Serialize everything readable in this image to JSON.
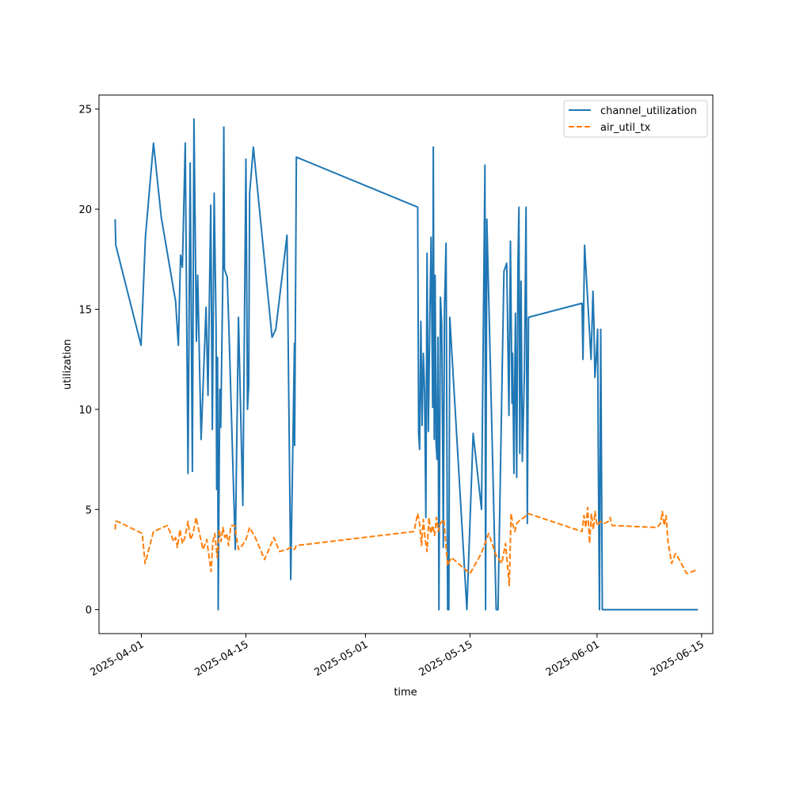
{
  "colors": {
    "channel_utilization": "#1f77b4",
    "air_util_tx": "#ff7f0e"
  },
  "chart_data": {
    "type": "line",
    "title": "",
    "xlabel": "time",
    "ylabel": "utilization",
    "xlim": [
      "2025-03-26T08:00",
      "2025-06-16T12:00"
    ],
    "ylim": [
      -1.2,
      25.7
    ],
    "x_ticks": [
      "2025-04-01",
      "2025-04-15",
      "2025-05-01",
      "2025-05-15",
      "2025-06-01",
      "2025-06-15"
    ],
    "y_ticks": [
      0,
      5,
      10,
      15,
      20,
      25
    ],
    "grid": false,
    "legend": "top-right",
    "series": [
      {
        "name": "channel_utilization",
        "style": "solid",
        "x": [
          "2025-03-28T12:00",
          "2025-03-28T14:00",
          "2025-03-31T23:00",
          "2025-04-01T13:00",
          "2025-04-02T15:00",
          "2025-04-03T16:00",
          "2025-04-05T14:00",
          "2025-04-05T23:00",
          "2025-04-06T06:00",
          "2025-04-06T12:00",
          "2025-04-06T21:00",
          "2025-04-07T06:00",
          "2025-04-07T13:00",
          "2025-04-07T20:00",
          "2025-04-08T01:00",
          "2025-04-08T09:00",
          "2025-04-08T13:00",
          "2025-04-09T00:00",
          "2025-04-09T16:00",
          "2025-04-09T22:00",
          "2025-04-10T07:00",
          "2025-04-10T12:00",
          "2025-04-10T18:00",
          "2025-04-11T00:00",
          "2025-04-11T02:00",
          "2025-04-11T05:00",
          "2025-04-11T07:00",
          "2025-04-11T12:00",
          "2025-04-11T15:00",
          "2025-04-11T22:00",
          "2025-04-12T01:00",
          "2025-04-12T03:00",
          "2025-04-12T12:00",
          "2025-04-12T18:00",
          "2025-04-13T14:00",
          "2025-04-14T00:00",
          "2025-04-14T14:00",
          "2025-04-15T00:00",
          "2025-04-15T05:00",
          "2025-04-15T09:00",
          "2025-04-15T12:00",
          "2025-04-16T00:00",
          "2025-04-18T12:00",
          "2025-04-19T00:00",
          "2025-04-20T12:00",
          "2025-04-21T00:00",
          "2025-04-21T12:00",
          "2025-04-21T12:30",
          "2025-04-21T18:00",
          "2025-05-08T00:00",
          "2025-05-08T03:00",
          "2025-05-08T06:00",
          "2025-05-08T10:00",
          "2025-05-08T14:00",
          "2025-05-08T18:00",
          "2025-05-08T22:00",
          "2025-05-09T02:00",
          "2025-05-09T06:00",
          "2025-05-09T10:00",
          "2025-05-09T15:00",
          "2025-05-09T19:00",
          "2025-05-10T00:00",
          "2025-05-10T02:00",
          "2025-05-10T05:00",
          "2025-05-10T08:00",
          "2025-05-10T11:00",
          "2025-05-10T14:00",
          "2025-05-10T17:00",
          "2025-05-10T20:00",
          "2025-05-11T01:00",
          "2025-05-11T05:00",
          "2025-05-11T08:00",
          "2025-05-11T10:00",
          "2025-05-11T14:00",
          "2025-05-11T19:00",
          "2025-05-12T00:00",
          "2025-05-12T04:00",
          "2025-05-12T07:00",
          "2025-05-14T14:00",
          "2025-05-15T10:00",
          "2025-05-16T13:00",
          "2025-05-17T00:00",
          "2025-05-17T02:00",
          "2025-05-17T06:00",
          "2025-05-18T12:00",
          "2025-05-18T18:00",
          "2025-05-19T13:00",
          "2025-05-19T22:00",
          "2025-05-20T05:00",
          "2025-05-20T10:00",
          "2025-05-20T15:00",
          "2025-05-20T17:00",
          "2025-05-20T21:00",
          "2025-05-21T02:00",
          "2025-05-21T06:00",
          "2025-05-21T10:00",
          "2025-05-21T13:00",
          "2025-05-21T16:00",
          "2025-05-21T20:00",
          "2025-05-22T00:00",
          "2025-05-22T07:00",
          "2025-05-22T12:00",
          "2025-05-22T16:00",
          "2025-05-22T20:00",
          "2025-05-30T00:00",
          "2025-05-30T03:00",
          "2025-05-30T08:00",
          "2025-05-31T05:00",
          "2025-05-31T11:00",
          "2025-05-31T14:00",
          "2025-05-31T17:00",
          "2025-05-31T21:00",
          "2025-06-01T02:00",
          "2025-06-01T04:00",
          "2025-06-01T08:00",
          "2025-06-01T12:00",
          "2025-06-01T17:00",
          "2025-06-01T23:00",
          "2025-06-02T04:00",
          "2025-06-02T09:00",
          "2025-06-02T15:00",
          "2025-06-08T18:00",
          "2025-06-09T10:00",
          "2025-06-09T12:00",
          "2025-06-09T15:00",
          "2025-06-09T18:00",
          "2025-06-09T21:00",
          "2025-06-10T00:00",
          "2025-06-10T05:00",
          "2025-06-11T00:00",
          "2025-06-11T05:00",
          "2025-06-11T11:00",
          "2025-06-11T16:00",
          "2025-06-13T00:00",
          "2025-06-13T08:00",
          "2025-06-14T12:00"
        ],
        "values": [
          19.5,
          18.2,
          13.2,
          18.6,
          23.3,
          19.6,
          15.4,
          13.2,
          17.7,
          17.1,
          23.3,
          6.8,
          22.3,
          6.9,
          24.5,
          13.4,
          16.7,
          8.5,
          15.1,
          10.7,
          20.2,
          9.0,
          20.8,
          14.2,
          6.0,
          12.6,
          0.0,
          11.0,
          9.1,
          16.7,
          24.1,
          17.0,
          16.6,
          13.7,
          3.0,
          14.6,
          5.2,
          22.5,
          10.0,
          11.2,
          20.8,
          23.1,
          13.6,
          14.0,
          18.7,
          1.5,
          13.3,
          8.2,
          22.6,
          20.1,
          8.8,
          8.0,
          14.4,
          9.2,
          12.8,
          10.9,
          4.6,
          17.8,
          8.9,
          14.8,
          18.6,
          10.1,
          23.1,
          8.5,
          16.7,
          8.3,
          7.5,
          13.6,
          0.0,
          15.6,
          14.3,
          8.4,
          3.1,
          15.0,
          18.3,
          0.0,
          0.0,
          14.6,
          0.0,
          8.8,
          5.0,
          22.2,
          0.0,
          19.5,
          0.0,
          0.0,
          16.9,
          17.3,
          9.7,
          18.4,
          10.3,
          12.8,
          6.8,
          14.8,
          6.6,
          17.3,
          20.1,
          7.8,
          16.4,
          7.4,
          11.9,
          20.1,
          4.3,
          14.6,
          15.3,
          12.5,
          18.2,
          12.5,
          15.9,
          14.3,
          11.6,
          12.4,
          14.0,
          7.8,
          0.0,
          14.0,
          0.0,
          0.0,
          0.0,
          0.0,
          0.0,
          0.0,
          0.0,
          0.0,
          0.0,
          0.0,
          0.0,
          0.0,
          0.0,
          0.0,
          0.0,
          0.0,
          0.0,
          0.0,
          0.0,
          0.0
        ],
        "values_note": ""
      },
      {
        "name": "air_util_tx",
        "style": "dashed",
        "x": [
          "2025-03-28T12:00",
          "2025-03-28T14:00",
          "2025-03-28T20:00",
          "2025-04-01T03:00",
          "2025-04-01T12:00",
          "2025-04-02T15:00",
          "2025-04-04T12:00",
          "2025-04-05T08:00",
          "2025-04-05T14:00",
          "2025-04-05T20:00",
          "2025-04-06T04:00",
          "2025-04-06T12:00",
          "2025-04-06T20:00",
          "2025-04-07T06:00",
          "2025-04-07T14:00",
          "2025-04-07T22:00",
          "2025-04-08T08:00",
          "2025-04-08T16:00",
          "2025-04-09T06:00",
          "2025-04-09T18:00",
          "2025-04-10T08:00",
          "2025-04-10T14:00",
          "2025-04-10T20:00",
          "2025-04-11T04:00",
          "2025-04-11T10:00",
          "2025-04-11T16:00",
          "2025-04-11T22:00",
          "2025-04-12T04:00",
          "2025-04-12T10:00",
          "2025-04-12T16:00",
          "2025-04-13T00:00",
          "2025-04-13T12:00",
          "2025-04-14T00:00",
          "2025-04-14T12:00",
          "2025-04-15T00:00",
          "2025-04-15T12:00",
          "2025-04-16T06:00",
          "2025-04-17T12:00",
          "2025-04-18T18:00",
          "2025-04-19T12:00",
          "2025-04-20T12:00",
          "2025-04-21T00:00",
          "2025-04-21T12:00",
          "2025-04-21T18:00",
          "2025-05-07T12:00",
          "2025-05-08T00:00",
          "2025-05-08T06:00",
          "2025-05-08T12:00",
          "2025-05-08T18:00",
          "2025-05-09T00:00",
          "2025-05-09T06:00",
          "2025-05-09T12:00",
          "2025-05-09T18:00",
          "2025-05-10T00:00",
          "2025-05-10T06:00",
          "2025-05-10T12:00",
          "2025-05-10T18:00",
          "2025-05-11T00:00",
          "2025-05-11T06:00",
          "2025-05-11T12:00",
          "2025-05-12T00:00",
          "2025-05-12T12:00",
          "2025-05-15T00:00",
          "2025-05-16T12:00",
          "2025-05-17T12:00",
          "2025-05-18T12:00",
          "2025-05-19T06:00",
          "2025-05-19T18:00",
          "2025-05-20T06:00",
          "2025-05-20T12:00",
          "2025-05-20T18:00",
          "2025-05-21T00:00",
          "2025-05-21T06:00",
          "2025-05-21T12:00",
          "2025-05-21T18:00",
          "2025-05-22T06:00",
          "2025-05-22T12:00",
          "2025-05-22T18:00",
          "2025-05-30T00:00",
          "2025-05-30T06:00",
          "2025-05-30T12:00",
          "2025-05-30T18:00",
          "2025-05-31T00:00",
          "2025-05-31T06:00",
          "2025-05-31T12:00",
          "2025-05-31T18:00",
          "2025-06-01T00:00",
          "2025-06-01T12:00",
          "2025-06-02T00:00",
          "2025-06-02T12:00",
          "2025-06-02T18:00",
          "2025-06-03T00:00",
          "2025-06-09T00:00",
          "2025-06-09T12:00",
          "2025-06-09T18:00",
          "2025-06-10T00:00",
          "2025-06-10T06:00",
          "2025-06-10T12:00",
          "2025-06-11T00:00",
          "2025-06-11T12:00",
          "2025-06-12T00:00",
          "2025-06-13T00:00",
          "2025-06-14T12:00"
        ],
        "values": [
          4.0,
          4.4,
          4.4,
          3.8,
          2.3,
          3.9,
          4.2,
          3.4,
          3.6,
          3.1,
          4.0,
          3.3,
          3.6,
          4.4,
          3.5,
          3.8,
          4.6,
          4.0,
          3.0,
          3.5,
          1.9,
          3.4,
          3.8,
          2.6,
          4.0,
          3.4,
          4.1,
          3.6,
          3.8,
          3.2,
          4.2,
          4.2,
          3.0,
          3.2,
          3.5,
          4.1,
          3.6,
          2.5,
          3.6,
          2.9,
          3.0,
          3.1,
          3.0,
          3.2,
          3.9,
          4.8,
          4.3,
          3.2,
          4.5,
          3.5,
          2.9,
          4.6,
          3.8,
          4.2,
          3.7,
          4.6,
          3.9,
          4.3,
          4.4,
          4.5,
          2.2,
          2.6,
          1.8,
          2.8,
          3.8,
          2.7,
          2.3,
          3.3,
          1.2,
          4.8,
          4.2,
          3.9,
          4.3,
          4.4,
          4.5,
          4.6,
          4.7,
          4.8,
          3.9,
          4.7,
          4.1,
          5.1,
          3.3,
          4.8,
          4.0,
          4.9,
          4.2,
          4.4,
          4.3,
          4.4,
          4.6,
          4.2,
          4.1,
          4.3,
          4.9,
          4.2,
          4.7,
          3.4,
          2.3,
          2.8,
          2.5,
          1.8,
          2.0
        ],
        "values_note": ""
      }
    ]
  }
}
